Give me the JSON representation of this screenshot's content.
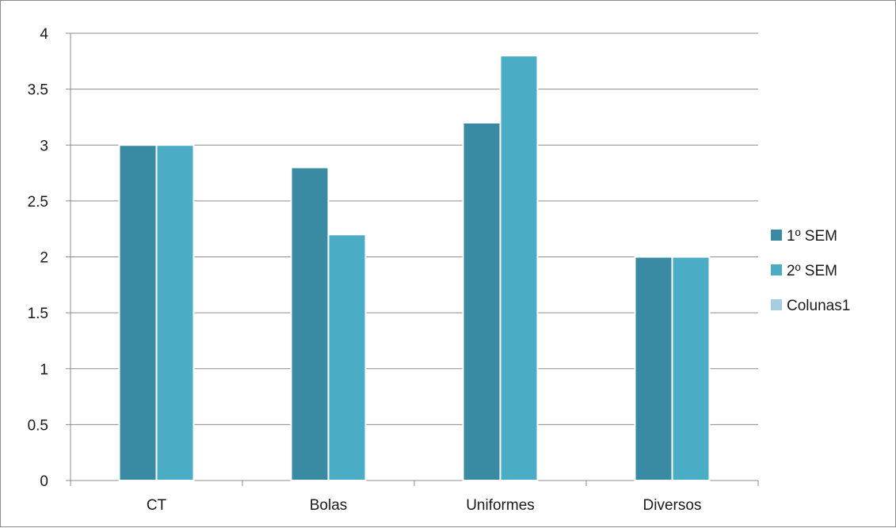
{
  "chart_data": {
    "type": "bar",
    "title": "",
    "xlabel": "",
    "ylabel": "",
    "categories": [
      "CT",
      "Bolas",
      "Uniformes",
      "Diversos"
    ],
    "series": [
      {
        "name": "1º SEM",
        "color": "#3a8aa3",
        "values": [
          3,
          2.8,
          3.2,
          2
        ]
      },
      {
        "name": "2º SEM",
        "color": "#4bacc6",
        "values": [
          3,
          2.2,
          3.8,
          2
        ]
      },
      {
        "name": "Colunas1",
        "color": "#a5cfdf",
        "values": [
          null,
          null,
          null,
          null
        ]
      }
    ],
    "ylim": [
      0,
      4
    ],
    "yticks": [
      "0",
      "0.5",
      "1",
      "1.5",
      "2",
      "2.5",
      "3",
      "3.5",
      "4"
    ],
    "grid": true,
    "legend_position": "right"
  }
}
